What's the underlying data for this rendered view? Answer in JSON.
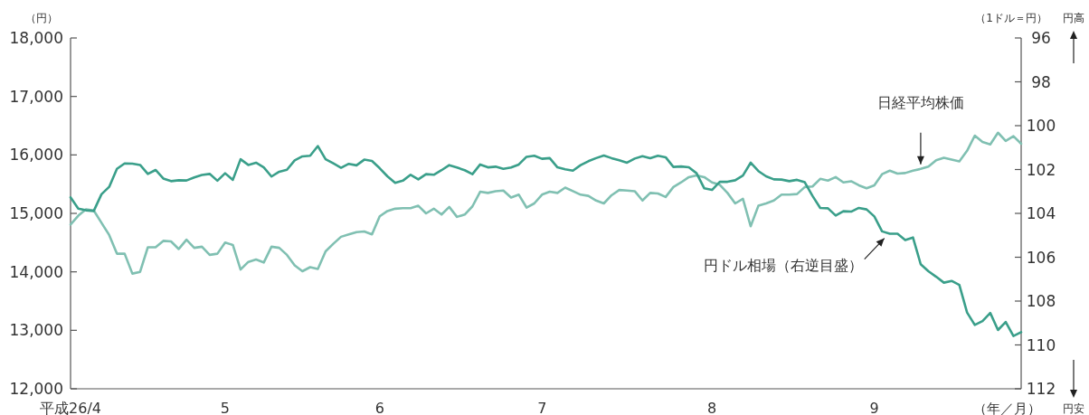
{
  "chart_data": {
    "type": "line",
    "xlabel": "（年／月）",
    "ylabel": "（円）",
    "y2label": "（1ドル＝円）",
    "annotations": [
      "円高",
      "円安"
    ],
    "categories": [
      "平成26/4",
      null,
      null,
      null,
      null,
      null,
      null,
      null,
      null,
      null,
      null,
      null,
      null,
      null,
      null,
      null,
      null,
      null,
      null,
      null,
      "5",
      null,
      null,
      null,
      null,
      null,
      null,
      null,
      null,
      null,
      null,
      null,
      null,
      null,
      null,
      null,
      null,
      null,
      null,
      null,
      "6",
      null,
      null,
      null,
      null,
      null,
      null,
      null,
      null,
      null,
      null,
      null,
      null,
      null,
      null,
      null,
      null,
      null,
      null,
      null,
      null,
      "7",
      null,
      null,
      null,
      null,
      null,
      null,
      null,
      null,
      null,
      null,
      null,
      null,
      null,
      null,
      null,
      null,
      null,
      null,
      null,
      null,
      null,
      "8",
      null,
      null,
      null,
      null,
      null,
      null,
      null,
      null,
      null,
      null,
      null,
      null,
      null,
      null,
      null,
      null,
      null,
      null,
      null,
      null,
      "9",
      null,
      null,
      null,
      null,
      null,
      null,
      null,
      null,
      null,
      null,
      null,
      null,
      null,
      null,
      null,
      null,
      null,
      null,
      null
    ],
    "ylim": [
      12000,
      18000
    ],
    "yticks": [
      {
        "value": 12000,
        "label": "12,000"
      },
      {
        "value": 13000,
        "label": "13,000"
      },
      {
        "value": 14000,
        "label": "14,000"
      },
      {
        "value": 15000,
        "label": "15,000"
      },
      {
        "value": 16000,
        "label": "16,000"
      },
      {
        "value": 17000,
        "label": "17,000"
      },
      {
        "value": 18000,
        "label": "18,000"
      }
    ],
    "y2lim": [
      112,
      96
    ],
    "y2ticks": [
      96,
      98,
      100,
      102,
      104,
      106,
      108,
      110,
      112
    ],
    "series": [
      {
        "name": "日経平均株価",
        "color": "#80c0b2",
        "values": [
          14810,
          14960,
          15070,
          15050,
          14840,
          14630,
          14310,
          14310,
          13970,
          14000,
          14420,
          14420,
          14530,
          14520,
          14390,
          14550,
          14410,
          14430,
          14290,
          14310,
          14500,
          14460,
          14040,
          14170,
          14210,
          14160,
          14430,
          14410,
          14290,
          14110,
          14010,
          14080,
          14050,
          14350,
          14480,
          14600,
          14640,
          14680,
          14690,
          14640,
          14950,
          15040,
          15080,
          15090,
          15090,
          15130,
          15000,
          15080,
          14980,
          15110,
          14940,
          14980,
          15120,
          15370,
          15350,
          15380,
          15390,
          15270,
          15320,
          15100,
          15170,
          15320,
          15370,
          15350,
          15440,
          15380,
          15320,
          15300,
          15220,
          15170,
          15310,
          15400,
          15390,
          15380,
          15220,
          15350,
          15340,
          15280,
          15450,
          15530,
          15620,
          15650,
          15620,
          15530,
          15490,
          15350,
          15170,
          15250,
          14780,
          15130,
          15170,
          15220,
          15320,
          15320,
          15330,
          15450,
          15460,
          15590,
          15560,
          15620,
          15530,
          15550,
          15480,
          15430,
          15480,
          15670,
          15730,
          15680,
          15690,
          15730,
          15760,
          15800,
          15910,
          15950,
          15920,
          15890,
          16070,
          16330,
          16220,
          16180,
          16380,
          16240,
          16320,
          16190
        ]
      },
      {
        "name": "円ドル相場（右逆目盛）",
        "color": "#3a9f8a",
        "axis": "y2",
        "values": [
          103.27,
          103.78,
          103.86,
          103.89,
          103.13,
          102.79,
          101.97,
          101.72,
          101.73,
          101.79,
          102.2,
          102.02,
          102.41,
          102.53,
          102.49,
          102.5,
          102.36,
          102.25,
          102.2,
          102.51,
          102.17,
          102.47,
          101.53,
          101.79,
          101.69,
          101.9,
          102.32,
          102.1,
          102.01,
          101.58,
          101.4,
          101.37,
          100.93,
          101.53,
          101.72,
          101.92,
          101.74,
          101.81,
          101.55,
          101.61,
          101.94,
          102.31,
          102.61,
          102.51,
          102.24,
          102.45,
          102.21,
          102.24,
          102.03,
          101.8,
          101.91,
          102.03,
          102.21,
          101.77,
          101.9,
          101.87,
          101.97,
          101.91,
          101.77,
          101.42,
          101.37,
          101.51,
          101.48,
          101.9,
          101.99,
          102.05,
          101.8,
          101.62,
          101.48,
          101.36,
          101.48,
          101.58,
          101.69,
          101.5,
          101.39,
          101.48,
          101.37,
          101.44,
          101.88,
          101.86,
          101.9,
          102.17,
          102.86,
          102.93,
          102.56,
          102.56,
          102.49,
          102.27,
          101.69,
          102.07,
          102.31,
          102.45,
          102.46,
          102.53,
          102.47,
          102.58,
          103.2,
          103.75,
          103.77,
          104.1,
          103.9,
          103.92,
          103.75,
          103.82,
          104.14,
          104.82,
          104.93,
          104.93,
          105.22,
          105.1,
          106.32,
          106.64,
          106.89,
          107.16,
          107.08,
          107.26,
          108.52,
          109.09,
          108.91,
          108.54,
          109.32,
          108.95,
          109.59,
          109.42
        ]
      }
    ]
  }
}
